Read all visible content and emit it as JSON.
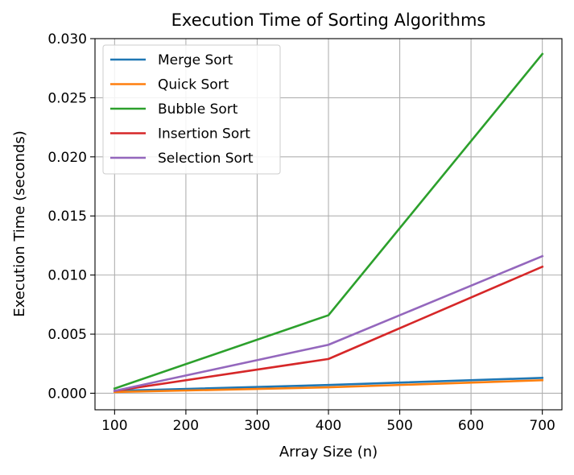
{
  "chart_data": {
    "type": "line",
    "title": "Execution Time of Sorting Algorithms",
    "xlabel": "Array Size (n)",
    "ylabel": "Execution Time (seconds)",
    "x": [
      100,
      400,
      700
    ],
    "xlim": [
      72.5,
      727.5
    ],
    "ylim": [
      -0.0014,
      0.03
    ],
    "xticks": [
      100,
      200,
      300,
      400,
      500,
      600,
      700
    ],
    "yticks": [
      0.0,
      0.005,
      0.01,
      0.015,
      0.02,
      0.025,
      0.03
    ],
    "xtick_labels": [
      "100",
      "200",
      "300",
      "400",
      "500",
      "600",
      "700"
    ],
    "ytick_labels": [
      "0.000",
      "0.005",
      "0.010",
      "0.015",
      "0.020",
      "0.025",
      "0.030"
    ],
    "grid": true,
    "legend_position": "upper-left",
    "series": [
      {
        "name": "Merge Sort",
        "color": "#1f77b4",
        "values": [
          0.0002,
          0.0007,
          0.0013
        ]
      },
      {
        "name": "Quick Sort",
        "color": "#ff7f0e",
        "values": [
          0.0001,
          0.0005,
          0.0011
        ]
      },
      {
        "name": "Bubble Sort",
        "color": "#2ca02c",
        "values": [
          0.0004,
          0.0066,
          0.0287
        ]
      },
      {
        "name": "Insertion Sort",
        "color": "#d62728",
        "values": [
          0.0002,
          0.0029,
          0.0107
        ]
      },
      {
        "name": "Selection Sort",
        "color": "#9467bd",
        "values": [
          0.0002,
          0.0041,
          0.0116
        ]
      }
    ]
  }
}
